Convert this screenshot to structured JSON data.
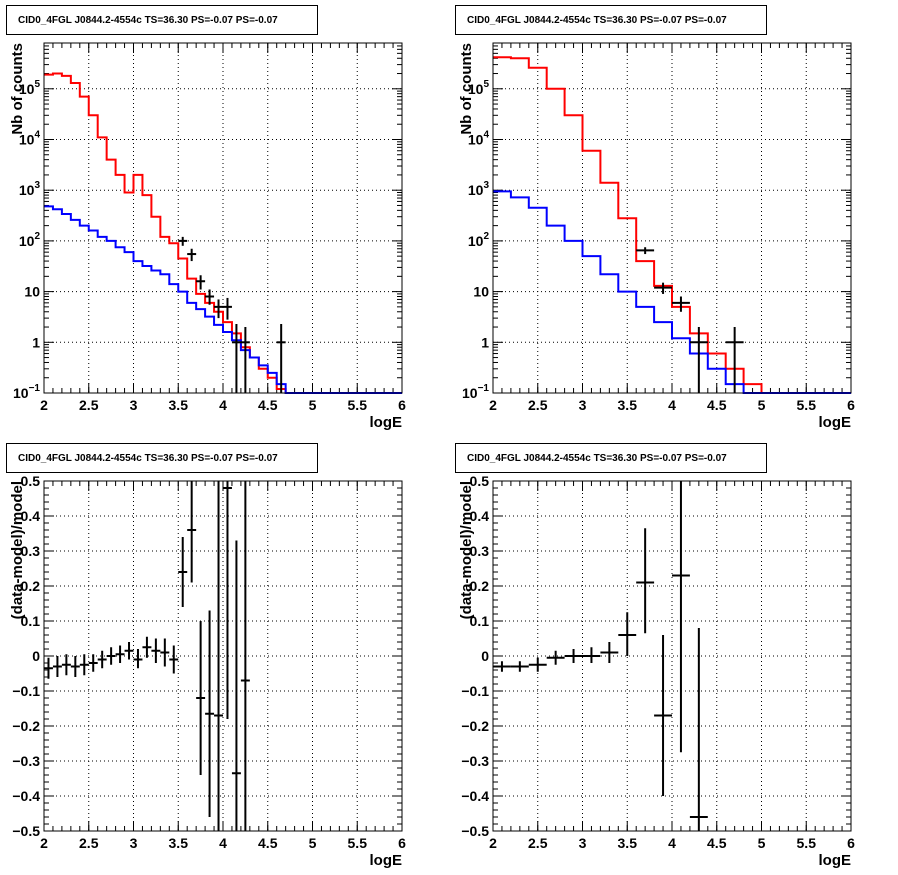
{
  "panels": [
    {
      "title": "CID0_4FGL J0844.2-4554c TS=36.30 PS=-0.07 PS=-0.07",
      "chart_data": {
        "type": "line",
        "scale_y": "log",
        "xlim": [
          2,
          6
        ],
        "ylim": [
          0.1,
          800000
        ],
        "xlabel": "logE",
        "ylabel": "Nb of counts",
        "x_ticks": [
          "2",
          "2.5",
          "3",
          "3.5",
          "4",
          "4.5",
          "5",
          "5.5",
          "6"
        ],
        "y_ticks": [
          {
            "v": 0.1,
            "base": "10",
            "exp": "−1"
          },
          {
            "v": 1,
            "label": "1"
          },
          {
            "v": 10,
            "label": "10"
          },
          {
            "v": 100,
            "base": "10",
            "exp": "2"
          },
          {
            "v": 1000,
            "base": "10",
            "exp": "3"
          },
          {
            "v": 10000,
            "base": "10",
            "exp": "4"
          },
          {
            "v": 100000,
            "base": "10",
            "exp": "5"
          }
        ],
        "grid": true,
        "series": [
          {
            "color": "#ff0000",
            "bin_edges": [
              2.0,
              2.1,
              2.2,
              2.3,
              2.4,
              2.5,
              2.6,
              2.7,
              2.8,
              2.9,
              3.0,
              3.1,
              3.2,
              3.3,
              3.4,
              3.5,
              3.6,
              3.7,
              3.8,
              3.9,
              4.0,
              4.1,
              4.2,
              4.3,
              4.4,
              4.5,
              4.6,
              4.7,
              4.8,
              4.9,
              5.0,
              5.1,
              5.2,
              5.3,
              5.4,
              5.5,
              5.6,
              5.7,
              5.8,
              5.9,
              6.0
            ],
            "values": [
              190000,
              200000,
              180000,
              130000,
              70000,
              30000,
              11000,
              4000,
              2000,
              900,
              2000,
              800,
              300,
              120,
              90,
              45,
              18,
              9,
              6,
              4,
              2.5,
              1.5,
              0.8,
              0.5,
              0.3,
              0.2,
              0.12,
              0.09,
              0.09,
              0.09,
              0.09,
              0.09,
              0.09,
              0.09,
              0.09,
              0.09,
              0.09,
              0.09,
              0.09,
              0.09
            ]
          },
          {
            "color": "#0000ff",
            "bin_edges": [
              2.0,
              2.1,
              2.2,
              2.3,
              2.4,
              2.5,
              2.6,
              2.7,
              2.8,
              2.9,
              3.0,
              3.1,
              3.2,
              3.3,
              3.4,
              3.5,
              3.6,
              3.7,
              3.8,
              3.9,
              4.0,
              4.1,
              4.2,
              4.3,
              4.4,
              4.5,
              4.6,
              4.7,
              4.8,
              4.9,
              5.0,
              5.1,
              5.2,
              5.3,
              5.4,
              5.5,
              5.6,
              5.7,
              5.8,
              5.9,
              6.0
            ],
            "values": [
              480,
              420,
              340,
              260,
              200,
              160,
              120,
              100,
              75,
              60,
              40,
              32,
              26,
              22,
              14,
              10,
              6,
              4.5,
              3.2,
              2.2,
              1.6,
              1.1,
              0.7,
              0.5,
              0.35,
              0.25,
              0.15,
              0.09,
              0.09,
              0.09,
              0.09,
              0.09,
              0.09,
              0.09,
              0.09,
              0.09,
              0.09,
              0.09,
              0.09,
              0.09
            ]
          }
        ],
        "points": [
          {
            "x": 3.55,
            "xerr": 0.05,
            "y": 100,
            "ylo": 80,
            "yhi": 120
          },
          {
            "x": 3.65,
            "xerr": 0.05,
            "y": 55,
            "ylo": 40,
            "yhi": 70
          },
          {
            "x": 3.75,
            "xerr": 0.05,
            "y": 16,
            "ylo": 11,
            "yhi": 21
          },
          {
            "x": 3.85,
            "xerr": 0.05,
            "y": 8,
            "ylo": 5.5,
            "yhi": 11
          },
          {
            "x": 3.95,
            "xerr": 0.05,
            "y": 5,
            "ylo": 3,
            "yhi": 7
          },
          {
            "x": 4.05,
            "xerr": 0.05,
            "y": 5,
            "ylo": 2.8,
            "yhi": 7.5
          },
          {
            "x": 4.15,
            "xerr": 0.05,
            "y": 1,
            "ylo": 0.1,
            "yhi": 2.3
          },
          {
            "x": 4.25,
            "xerr": 0.05,
            "y": 1,
            "ylo": 0.1,
            "yhi": 2
          },
          {
            "x": 4.65,
            "xerr": 0.05,
            "y": 1,
            "ylo": 0.1,
            "yhi": 2.3
          }
        ]
      }
    },
    {
      "title": "CID0_4FGL J0844.2-4554c TS=36.30 PS=-0.07 PS=-0.07",
      "chart_data": {
        "type": "line",
        "scale_y": "log",
        "xlim": [
          2,
          6
        ],
        "ylim": [
          0.1,
          800000
        ],
        "xlabel": "logE",
        "ylabel": "Nb of counts",
        "x_ticks": [
          "2",
          "2.5",
          "3",
          "3.5",
          "4",
          "4.5",
          "5",
          "5.5",
          "6"
        ],
        "y_ticks": [
          {
            "v": 0.1,
            "base": "10",
            "exp": "−1"
          },
          {
            "v": 1,
            "label": "1"
          },
          {
            "v": 10,
            "label": "10"
          },
          {
            "v": 100,
            "base": "10",
            "exp": "2"
          },
          {
            "v": 1000,
            "base": "10",
            "exp": "3"
          },
          {
            "v": 10000,
            "base": "10",
            "exp": "4"
          },
          {
            "v": 100000,
            "base": "10",
            "exp": "5"
          }
        ],
        "grid": true,
        "series": [
          {
            "color": "#ff0000",
            "bin_edges": [
              2.0,
              2.2,
              2.4,
              2.6,
              2.8,
              3.0,
              3.2,
              3.4,
              3.6,
              3.8,
              4.0,
              4.2,
              4.4,
              4.6,
              4.8,
              5.0,
              5.2,
              5.4,
              5.6,
              5.8,
              6.0
            ],
            "values": [
              420000,
              400000,
              260000,
              100000,
              30000,
              6000,
              1400,
              280,
              40,
              13,
              5,
              1.5,
              0.6,
              0.3,
              0.15,
              0.09,
              0.09,
              0.09,
              0.09,
              0.09
            ]
          },
          {
            "color": "#0000ff",
            "bin_edges": [
              2.0,
              2.2,
              2.4,
              2.6,
              2.8,
              3.0,
              3.2,
              3.4,
              3.6,
              3.8,
              4.0,
              4.2,
              4.4,
              4.6,
              4.8,
              5.0,
              5.2,
              5.4,
              5.6,
              5.8,
              6.0
            ],
            "values": [
              950,
              720,
              450,
              200,
              100,
              50,
              22,
              10,
              5,
              2.5,
              1.2,
              0.6,
              0.3,
              0.15,
              0.09,
              0.09,
              0.09,
              0.09,
              0.09,
              0.09
            ]
          }
        ],
        "points": [
          {
            "x": 3.7,
            "xerr": 0.1,
            "y": 65,
            "ylo": 55,
            "yhi": 75
          },
          {
            "x": 3.9,
            "xerr": 0.1,
            "y": 12,
            "ylo": 9,
            "yhi": 15
          },
          {
            "x": 4.1,
            "xerr": 0.1,
            "y": 6,
            "ylo": 4,
            "yhi": 8
          },
          {
            "x": 4.3,
            "xerr": 0.1,
            "y": 1,
            "ylo": 0.1,
            "yhi": 2
          },
          {
            "x": 4.7,
            "xerr": 0.1,
            "y": 1,
            "ylo": 0.1,
            "yhi": 2
          }
        ]
      }
    },
    {
      "title": "CID0_4FGL J0844.2-4554c TS=36.30 PS=-0.07 PS=-0.07",
      "chart_data": {
        "type": "scatter",
        "scale_y": "linear",
        "xlim": [
          2,
          6
        ],
        "ylim": [
          -0.5,
          0.5
        ],
        "xlabel": "logE",
        "ylabel": "(data-model)/model",
        "x_ticks": [
          "2",
          "2.5",
          "3",
          "3.5",
          "4",
          "4.5",
          "5",
          "5.5",
          "6"
        ],
        "y_ticks": [
          {
            "v": -0.5,
            "label": "−0.5"
          },
          {
            "v": -0.4,
            "label": "−0.4"
          },
          {
            "v": -0.3,
            "label": "−0.3"
          },
          {
            "v": -0.2,
            "label": "−0.2"
          },
          {
            "v": -0.1,
            "label": "−0.1"
          },
          {
            "v": 0,
            "label": "0"
          },
          {
            "v": 0.1,
            "label": "0.1"
          },
          {
            "v": 0.2,
            "label": "0.2"
          },
          {
            "v": 0.3,
            "label": "0.3"
          },
          {
            "v": 0.4,
            "label": "0.4"
          },
          {
            "v": 0.5,
            "label": "0.5"
          }
        ],
        "grid": true,
        "points": [
          {
            "x": 2.05,
            "xerr": 0.05,
            "y": -0.035,
            "ylo": -0.065,
            "yhi": -0.005
          },
          {
            "x": 2.15,
            "xerr": 0.05,
            "y": -0.03,
            "ylo": -0.06,
            "yhi": 0.0
          },
          {
            "x": 2.25,
            "xerr": 0.05,
            "y": -0.025,
            "ylo": -0.055,
            "yhi": 0.005
          },
          {
            "x": 2.35,
            "xerr": 0.05,
            "y": -0.03,
            "ylo": -0.06,
            "yhi": 0.0
          },
          {
            "x": 2.45,
            "xerr": 0.05,
            "y": -0.025,
            "ylo": -0.055,
            "yhi": 0.005
          },
          {
            "x": 2.55,
            "xerr": 0.05,
            "y": -0.02,
            "ylo": -0.045,
            "yhi": 0.005
          },
          {
            "x": 2.65,
            "xerr": 0.05,
            "y": -0.01,
            "ylo": -0.035,
            "yhi": 0.015
          },
          {
            "x": 2.75,
            "xerr": 0.05,
            "y": 0.0,
            "ylo": -0.025,
            "yhi": 0.025
          },
          {
            "x": 2.85,
            "xerr": 0.05,
            "y": 0.005,
            "ylo": -0.02,
            "yhi": 0.03
          },
          {
            "x": 2.95,
            "xerr": 0.05,
            "y": 0.015,
            "ylo": -0.01,
            "yhi": 0.04
          },
          {
            "x": 3.05,
            "xerr": 0.05,
            "y": -0.01,
            "ylo": -0.035,
            "yhi": 0.02
          },
          {
            "x": 3.15,
            "xerr": 0.05,
            "y": 0.025,
            "ylo": -0.005,
            "yhi": 0.055
          },
          {
            "x": 3.25,
            "xerr": 0.05,
            "y": 0.015,
            "ylo": -0.02,
            "yhi": 0.05
          },
          {
            "x": 3.35,
            "xerr": 0.05,
            "y": 0.01,
            "ylo": -0.03,
            "yhi": 0.05
          },
          {
            "x": 3.45,
            "xerr": 0.05,
            "y": -0.01,
            "ylo": -0.05,
            "yhi": 0.03
          },
          {
            "x": 3.55,
            "xerr": 0.05,
            "y": 0.24,
            "ylo": 0.14,
            "yhi": 0.34
          },
          {
            "x": 3.65,
            "xerr": 0.05,
            "y": 0.36,
            "ylo": 0.21,
            "yhi": 0.5
          },
          {
            "x": 3.75,
            "xerr": 0.05,
            "y": -0.12,
            "ylo": -0.34,
            "yhi": 0.1
          },
          {
            "x": 3.85,
            "xerr": 0.05,
            "y": -0.165,
            "ylo": -0.46,
            "yhi": 0.13
          },
          {
            "x": 3.95,
            "xerr": 0.05,
            "y": -0.17,
            "ylo": -0.5,
            "yhi": 0.5
          },
          {
            "x": 4.05,
            "xerr": 0.05,
            "y": 0.48,
            "ylo": -0.18,
            "yhi": 0.5
          },
          {
            "x": 4.15,
            "xerr": 0.05,
            "y": -0.335,
            "ylo": -0.5,
            "yhi": 0.33
          },
          {
            "x": 4.25,
            "xerr": 0.05,
            "y": -0.07,
            "ylo": -0.5,
            "yhi": 0.5
          }
        ]
      }
    },
    {
      "title": "CID0_4FGL J0844.2-4554c TS=36.30 PS=-0.07 PS=-0.07",
      "chart_data": {
        "type": "scatter",
        "scale_y": "linear",
        "xlim": [
          2,
          6
        ],
        "ylim": [
          -0.5,
          0.5
        ],
        "xlabel": "logE",
        "ylabel": "(data-model)/model",
        "x_ticks": [
          "2",
          "2.5",
          "3",
          "3.5",
          "4",
          "4.5",
          "5",
          "5.5",
          "6"
        ],
        "y_ticks": [
          {
            "v": -0.5,
            "label": "−0.5"
          },
          {
            "v": -0.4,
            "label": "−0.4"
          },
          {
            "v": -0.3,
            "label": "−0.3"
          },
          {
            "v": -0.2,
            "label": "−0.2"
          },
          {
            "v": -0.1,
            "label": "−0.1"
          },
          {
            "v": 0,
            "label": "0"
          },
          {
            "v": 0.1,
            "label": "0.1"
          },
          {
            "v": 0.2,
            "label": "0.2"
          },
          {
            "v": 0.3,
            "label": "0.3"
          },
          {
            "v": 0.4,
            "label": "0.4"
          },
          {
            "v": 0.5,
            "label": "0.5"
          }
        ],
        "grid": true,
        "points": [
          {
            "x": 2.1,
            "xerr": 0.1,
            "y": -0.03,
            "ylo": -0.045,
            "yhi": -0.015
          },
          {
            "x": 2.3,
            "xerr": 0.1,
            "y": -0.03,
            "ylo": -0.045,
            "yhi": -0.015
          },
          {
            "x": 2.5,
            "xerr": 0.1,
            "y": -0.025,
            "ylo": -0.045,
            "yhi": -0.005
          },
          {
            "x": 2.7,
            "xerr": 0.1,
            "y": -0.005,
            "ylo": -0.025,
            "yhi": 0.015
          },
          {
            "x": 2.9,
            "xerr": 0.1,
            "y": 0.0,
            "ylo": -0.02,
            "yhi": 0.02
          },
          {
            "x": 3.1,
            "xerr": 0.1,
            "y": 0.0,
            "ylo": -0.02,
            "yhi": 0.025
          },
          {
            "x": 3.3,
            "xerr": 0.1,
            "y": 0.01,
            "ylo": -0.02,
            "yhi": 0.04
          },
          {
            "x": 3.5,
            "xerr": 0.1,
            "y": 0.06,
            "ylo": 0.0,
            "yhi": 0.125
          },
          {
            "x": 3.7,
            "xerr": 0.1,
            "y": 0.21,
            "ylo": 0.065,
            "yhi": 0.365
          },
          {
            "x": 3.9,
            "xerr": 0.1,
            "y": -0.17,
            "ylo": -0.4,
            "yhi": 0.06
          },
          {
            "x": 4.1,
            "xerr": 0.1,
            "y": 0.23,
            "ylo": -0.275,
            "yhi": 0.5
          },
          {
            "x": 4.3,
            "xerr": 0.1,
            "y": -0.46,
            "ylo": -0.5,
            "yhi": 0.08
          }
        ]
      }
    }
  ]
}
